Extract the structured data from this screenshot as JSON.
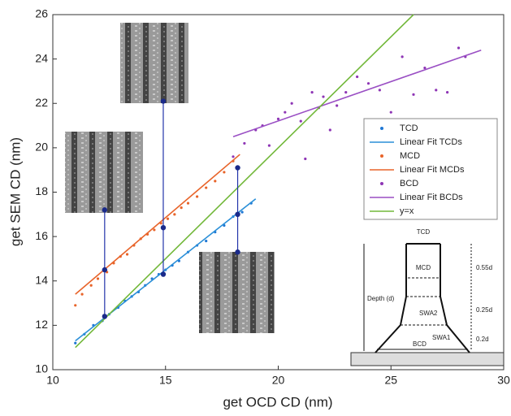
{
  "chart_data": {
    "type": "scatter",
    "xlabel": "get OCD CD (nm)",
    "ylabel": "get SEM CD (nm)",
    "xlim": [
      10,
      30
    ],
    "xticks": [
      10,
      15,
      20,
      25,
      30
    ],
    "ylim": [
      10,
      26
    ],
    "yticks": [
      10,
      12,
      14,
      16,
      18,
      20,
      22,
      24,
      26
    ],
    "series": [
      {
        "name": "TCD",
        "kind": "scatter",
        "color": "#1f77d4",
        "x": [
          11.0,
          11.4,
          11.8,
          12.2,
          12.5,
          12.9,
          13.2,
          13.5,
          13.8,
          14.1,
          14.4,
          14.7,
          15.0,
          15.3,
          15.6,
          16.0,
          16.4,
          16.8,
          17.2,
          17.6,
          18.0,
          18.4,
          18.8
        ],
        "values": [
          11.2,
          11.6,
          12.0,
          12.2,
          12.5,
          12.8,
          13.1,
          13.3,
          13.5,
          13.8,
          14.1,
          14.3,
          14.5,
          14.7,
          14.9,
          15.3,
          15.6,
          15.8,
          16.2,
          16.5,
          16.9,
          17.1,
          17.5
        ]
      },
      {
        "name": "Linear Fit TCDs",
        "kind": "line",
        "color": "#2a8fd8",
        "x": [
          11,
          19
        ],
        "values": [
          11.3,
          17.7
        ]
      },
      {
        "name": "MCD",
        "kind": "scatter",
        "color": "#e8642a",
        "x": [
          11.0,
          11.3,
          11.7,
          12.0,
          12.4,
          12.7,
          13.0,
          13.3,
          13.6,
          13.9,
          14.2,
          14.5,
          14.8,
          15.1,
          15.4,
          15.7,
          16.0,
          16.4,
          16.8,
          17.2,
          17.6,
          18.0
        ],
        "values": [
          12.9,
          13.4,
          13.8,
          14.1,
          14.4,
          14.8,
          15.1,
          15.2,
          15.6,
          15.9,
          16.1,
          16.3,
          16.6,
          16.8,
          17.0,
          17.3,
          17.5,
          17.8,
          18.2,
          18.5,
          18.9,
          19.4
        ]
      },
      {
        "name": "Linear Fit MCDs",
        "kind": "line",
        "color": "#e8642a",
        "x": [
          11,
          18.3
        ],
        "values": [
          13.4,
          19.7
        ]
      },
      {
        "name": "BCD",
        "kind": "scatter",
        "color": "#8e35b5",
        "x": [
          18.0,
          18.5,
          19.0,
          19.3,
          19.6,
          20.0,
          20.3,
          20.6,
          21.0,
          21.2,
          21.5,
          21.8,
          22.0,
          22.3,
          22.6,
          23.0,
          23.5,
          24.0,
          24.5,
          25.0,
          25.5,
          26.0,
          26.5,
          27.0,
          27.5,
          28.0,
          28.3
        ],
        "values": [
          19.6,
          20.2,
          20.8,
          21.0,
          20.1,
          21.3,
          21.6,
          22.0,
          21.2,
          19.5,
          22.5,
          21.8,
          22.3,
          20.8,
          21.9,
          22.5,
          23.2,
          22.9,
          22.6,
          21.6,
          24.1,
          22.4,
          23.6,
          22.6,
          22.5,
          24.5,
          24.1
        ]
      },
      {
        "name": "Linear Fit BCDs",
        "kind": "line",
        "color": "#9a4fc4",
        "x": [
          18,
          29
        ],
        "values": [
          20.5,
          24.4
        ]
      },
      {
        "name": "y=x",
        "kind": "line",
        "color": "#72b83a",
        "x": [
          11,
          26
        ],
        "values": [
          11,
          26
        ]
      }
    ],
    "connectors": [
      {
        "x": 12.3,
        "values": [
          12.4,
          14.5,
          17.2
        ]
      },
      {
        "x": 14.9,
        "values": [
          14.3,
          16.4,
          22.1
        ]
      },
      {
        "x": 18.2,
        "values": [
          15.3,
          17.0,
          19.1
        ]
      }
    ],
    "diagram_labels": [
      "TCD",
      "MCD",
      "0.55d",
      "Depth (d)",
      "0.25d",
      "SWA2",
      "SWA1",
      "BCD",
      "0.2d"
    ]
  }
}
